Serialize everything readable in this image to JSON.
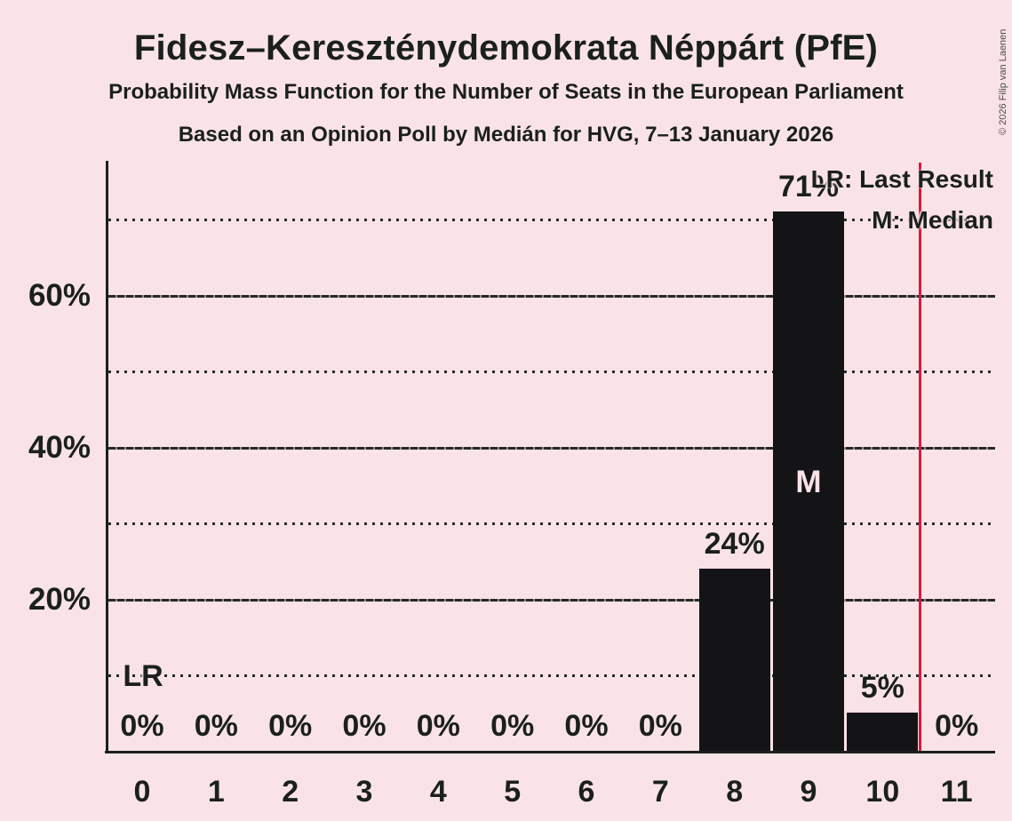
{
  "header": {
    "title": "Fidesz–Kereszténydemokrata Néppárt (PfE)",
    "subtitle": "Probability Mass Function for the Number of Seats in the European Parliament",
    "poll_line": "Based on an Opinion Poll by Medián for HVG, 7–13 January 2026"
  },
  "copyright": "© 2026 Filip van Laenen",
  "legend": {
    "last_result": "LR: Last Result",
    "median": "M: Median"
  },
  "markers": {
    "lr_label": "LR",
    "median_label": "M"
  },
  "chart_data": {
    "type": "bar",
    "title": "Fidesz–Kereszténydemokrata Néppárt (PfE)",
    "xlabel": "",
    "ylabel": "",
    "categories": [
      "0",
      "1",
      "2",
      "3",
      "4",
      "5",
      "6",
      "7",
      "8",
      "9",
      "10",
      "11"
    ],
    "values": [
      0,
      0,
      0,
      0,
      0,
      0,
      0,
      0,
      24,
      71,
      5,
      0
    ],
    "value_labels": [
      "0%",
      "0%",
      "0%",
      "0%",
      "0%",
      "0%",
      "0%",
      "0%",
      "24%",
      "71%",
      "5%",
      "0%"
    ],
    "ylim": [
      0,
      77.5
    ],
    "y_tick_values": [
      20,
      40,
      60
    ],
    "y_tick_labels": [
      "20%",
      "40%",
      "60%"
    ],
    "solid_gridlines": [
      20,
      40,
      60
    ],
    "dotted_gridlines": [
      10,
      30,
      50,
      70
    ],
    "grid": "horizontal-only",
    "legend_position": "top-right",
    "median_seats": 9,
    "last_result_line_position": 10.5,
    "lr_annotation": {
      "category": 0,
      "percent": 10
    },
    "colors": {
      "background": "#fae3e7",
      "bar": "#141416",
      "last_result_line": "#d81b40",
      "median_letter": "#fae3e7",
      "text": "#1a201d"
    }
  }
}
